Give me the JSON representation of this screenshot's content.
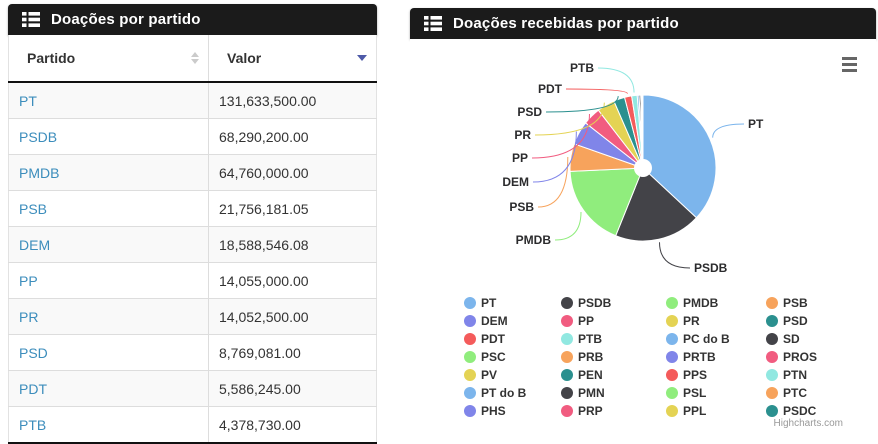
{
  "page": {
    "background": "#ffffff"
  },
  "left_panel": {
    "header": {
      "title": "Doações por partido",
      "icon": "th-list-icon"
    },
    "table": {
      "columns": [
        {
          "label": "Partido",
          "sort_state": "unsorted"
        },
        {
          "label": "Valor",
          "sort_state": "sorted-descending"
        }
      ],
      "rows": [
        {
          "party": "PT",
          "value": "131,633,500.00"
        },
        {
          "party": "PSDB",
          "value": "68,290,200.00"
        },
        {
          "party": "PMDB",
          "value": "64,760,000.00"
        },
        {
          "party": "PSB",
          "value": "21,756,181.05"
        },
        {
          "party": "DEM",
          "value": "18,588,546.08"
        },
        {
          "party": "PP",
          "value": "14,055,000.00"
        },
        {
          "party": "PR",
          "value": "14,052,500.00"
        },
        {
          "party": "PSD",
          "value": "8,769,081.00"
        },
        {
          "party": "PDT",
          "value": "5,586,245.00"
        },
        {
          "party": "PTB",
          "value": "4,378,730.00"
        }
      ]
    }
  },
  "right_panel": {
    "header": {
      "title": "Doações recebidas por partido",
      "icon": "th-list-icon"
    },
    "export_icon": "hamburger-menu-icon",
    "credit": "Highcharts.com"
  },
  "chart_data": {
    "type": "pie",
    "title": "",
    "donut": true,
    "start_angle_deg": 0,
    "legend": {
      "position": "bottom",
      "columns": 4
    },
    "palette": [
      "#7cb5ec",
      "#434348",
      "#90ed7d",
      "#f7a35c",
      "#8085e9",
      "#f15c80",
      "#e4d354",
      "#2b908f",
      "#f45b5b",
      "#91e8e1"
    ],
    "labeled_slices": [
      "PT",
      "PSDB",
      "PMDB",
      "PSB",
      "DEM",
      "PP",
      "PR",
      "PSD",
      "PDT",
      "PTB"
    ],
    "series": [
      {
        "name": "Doações recebidas por partido",
        "points": [
          {
            "name": "PT",
            "y": 131633500
          },
          {
            "name": "PSDB",
            "y": 68290200
          },
          {
            "name": "PMDB",
            "y": 64760000
          },
          {
            "name": "PSB",
            "y": 21756181.05
          },
          {
            "name": "DEM",
            "y": 18588546.08
          },
          {
            "name": "PP",
            "y": 14055000
          },
          {
            "name": "PR",
            "y": 14052500
          },
          {
            "name": "PSD",
            "y": 8769081
          },
          {
            "name": "PDT",
            "y": 5586245
          },
          {
            "name": "PTB",
            "y": 4378730
          },
          {
            "name": "PC do B",
            "y": 1450000,
            "estimated": true
          },
          {
            "name": "SD",
            "y": 1300000,
            "estimated": true
          },
          {
            "name": "PSC",
            "y": 300000,
            "estimated": true
          },
          {
            "name": "PRB",
            "y": 250000,
            "estimated": true
          },
          {
            "name": "PRTB",
            "y": 200000,
            "estimated": true
          },
          {
            "name": "PROS",
            "y": 180000,
            "estimated": true
          },
          {
            "name": "PV",
            "y": 150000,
            "estimated": true
          },
          {
            "name": "PEN",
            "y": 120000,
            "estimated": true
          },
          {
            "name": "PPS",
            "y": 100000,
            "estimated": true
          },
          {
            "name": "PTN",
            "y": 90000,
            "estimated": true
          },
          {
            "name": "PT do B",
            "y": 80000,
            "estimated": true
          },
          {
            "name": "PMN",
            "y": 70000,
            "estimated": true
          },
          {
            "name": "PSL",
            "y": 60000,
            "estimated": true
          },
          {
            "name": "PTC",
            "y": 50000,
            "estimated": true
          },
          {
            "name": "PHS",
            "y": 40000,
            "estimated": true
          },
          {
            "name": "PRP",
            "y": 30000,
            "estimated": true
          },
          {
            "name": "PPL",
            "y": 25000,
            "estimated": true
          },
          {
            "name": "PSDC",
            "y": 20000,
            "estimated": true
          }
        ]
      }
    ]
  }
}
